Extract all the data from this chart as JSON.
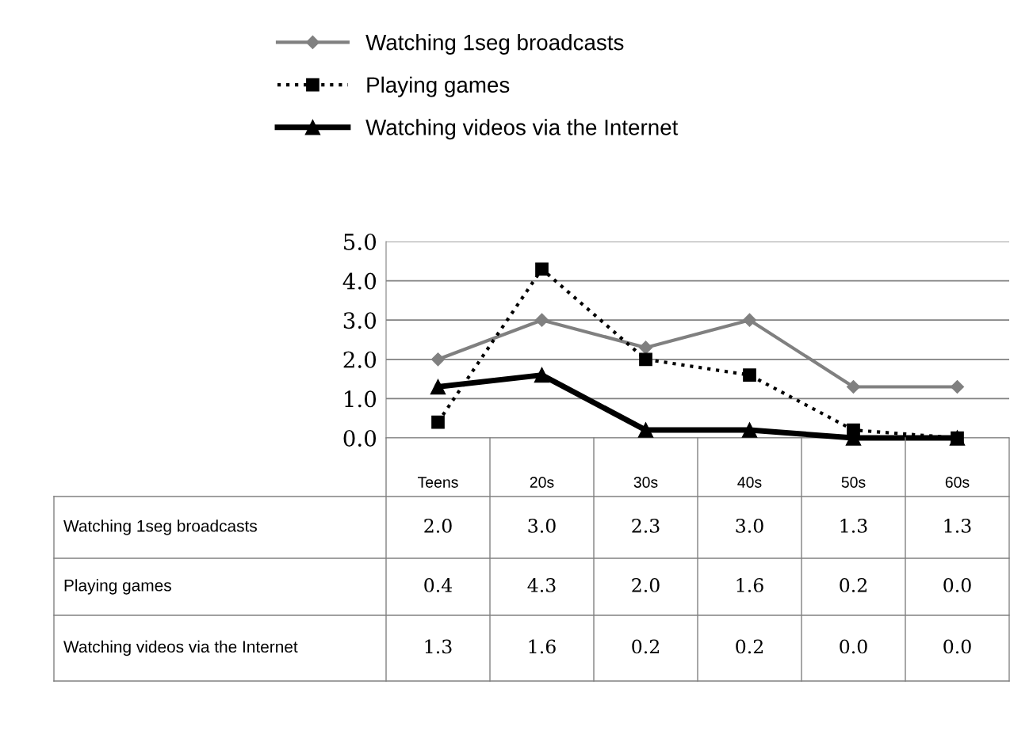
{
  "chart_data": {
    "type": "line",
    "categories": [
      "Teens",
      "20s",
      "30s",
      "40s",
      "50s",
      "60s"
    ],
    "series": [
      {
        "name": "Watching 1seg broadcasts",
        "color": "#808080",
        "values": [
          2.0,
          3.0,
          2.3,
          3.0,
          1.3,
          1.3
        ],
        "value_labels": [
          "2.0",
          "3.0",
          "2.3",
          "3.0",
          "1.3",
          "1.3"
        ],
        "marker": "diamond",
        "line_style": "solid"
      },
      {
        "name": "Playing games",
        "color": "#000000",
        "values": [
          0.4,
          4.3,
          2.0,
          1.6,
          0.2,
          0.0
        ],
        "value_labels": [
          "0.4",
          "4.3",
          "2.0",
          "1.6",
          "0.2",
          "0.0"
        ],
        "marker": "square",
        "line_style": "dotted"
      },
      {
        "name": "Watching videos via the Internet",
        "color": "#000000",
        "values": [
          1.3,
          1.6,
          0.2,
          0.2,
          0.0,
          0.0
        ],
        "value_labels": [
          "1.3",
          "1.6",
          "0.2",
          "0.2",
          "0.0",
          "0.0"
        ],
        "marker": "triangle",
        "line_style": "solid"
      }
    ],
    "ylim": [
      0,
      5
    ],
    "yticks": [
      {
        "value": 0,
        "label": "0.0"
      },
      {
        "value": 1,
        "label": "1.0"
      },
      {
        "value": 2,
        "label": "2.0"
      },
      {
        "value": 3,
        "label": "3.0"
      },
      {
        "value": 4,
        "label": "4.0"
      },
      {
        "value": 5,
        "label": "5.0"
      }
    ],
    "grid": "y",
    "legend": "top"
  }
}
